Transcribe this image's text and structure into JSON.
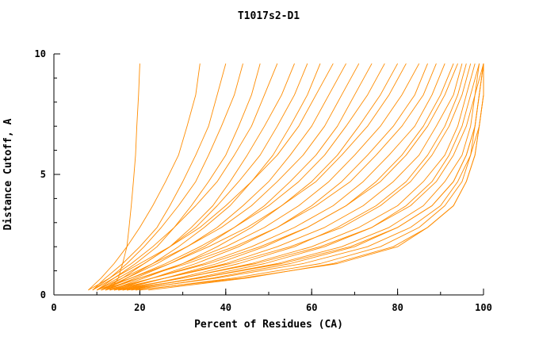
{
  "chart_data": {
    "type": "line",
    "title": "T1017s2-D1",
    "xlabel": "Percent of Residues (CA)",
    "ylabel": "Distance Cutoff, A",
    "xlim": [
      0,
      100
    ],
    "ylim": [
      0,
      10
    ],
    "xticks": [
      0,
      20,
      40,
      60,
      80,
      100
    ],
    "yticks": [
      0,
      5,
      10
    ],
    "x_minor_step": 10,
    "y_minor_step": 1,
    "grid": "off",
    "legend": "none",
    "line_color": "#ff8c00",
    "axis_color": "#000000",
    "cutoffs": [
      0.2,
      0.7,
      1.3,
      2.0,
      2.8,
      3.7,
      4.7,
      5.8,
      7.0,
      8.3,
      9.6
    ],
    "series": [
      [
        13,
        15,
        16,
        17,
        17.5,
        18,
        18.5,
        19,
        19.3,
        19.7,
        20
      ],
      [
        8,
        11,
        14,
        17,
        20,
        23,
        26,
        29,
        31,
        33,
        34
      ],
      [
        9,
        12,
        16,
        20,
        24,
        27,
        30,
        33,
        36,
        38,
        40
      ],
      [
        8,
        13,
        17,
        21,
        25,
        29,
        33,
        36,
        39,
        42,
        44
      ],
      [
        10,
        14,
        19,
        24,
        28,
        32,
        36,
        40,
        43,
        46,
        48
      ],
      [
        9,
        13,
        18,
        23,
        28,
        33,
        38,
        42,
        46,
        49,
        52
      ],
      [
        11,
        16,
        21,
        27,
        32,
        37,
        41,
        45,
        49,
        53,
        56
      ],
      [
        10,
        15,
        21,
        27,
        33,
        38,
        43,
        48,
        52,
        56,
        59
      ],
      [
        12,
        17,
        23,
        29,
        35,
        41,
        46,
        51,
        55,
        59,
        62
      ],
      [
        9,
        14,
        20,
        27,
        34,
        40,
        46,
        52,
        57,
        61,
        65
      ],
      [
        11,
        17,
        24,
        31,
        38,
        44,
        50,
        55,
        60,
        64,
        68
      ],
      [
        10,
        16,
        23,
        31,
        39,
        46,
        52,
        58,
        63,
        67,
        71
      ],
      [
        12,
        19,
        27,
        35,
        42,
        49,
        55,
        61,
        66,
        70,
        74
      ],
      [
        11,
        18,
        26,
        34,
        42,
        50,
        57,
        63,
        68,
        73,
        77
      ],
      [
        13,
        21,
        30,
        38,
        46,
        53,
        60,
        66,
        71,
        76,
        80
      ],
      [
        10,
        18,
        27,
        36,
        45,
        53,
        61,
        67,
        73,
        78,
        82
      ],
      [
        12,
        20,
        30,
        40,
        49,
        57,
        64,
        70,
        76,
        81,
        85
      ],
      [
        14,
        23,
        33,
        43,
        52,
        60,
        67,
        73,
        79,
        84,
        87
      ],
      [
        11,
        20,
        31,
        42,
        52,
        61,
        69,
        75,
        81,
        86,
        89
      ],
      [
        13,
        23,
        35,
        46,
        56,
        65,
        72,
        78,
        84,
        88,
        91
      ],
      [
        15,
        26,
        38,
        49,
        59,
        68,
        75,
        81,
        86,
        90,
        93
      ],
      [
        12,
        23,
        36,
        48,
        59,
        68,
        76,
        82,
        87,
        91,
        94
      ],
      [
        14,
        26,
        40,
        52,
        63,
        72,
        79,
        85,
        89,
        93,
        95
      ],
      [
        16,
        29,
        43,
        56,
        66,
        75,
        82,
        87,
        91,
        94,
        96
      ],
      [
        13,
        26,
        41,
        55,
        67,
        76,
        83,
        88,
        92,
        95,
        97
      ],
      [
        15,
        30,
        46,
        60,
        71,
        80,
        86,
        91,
        94,
        96,
        98
      ],
      [
        17,
        33,
        49,
        63,
        74,
        82,
        88,
        92,
        95,
        97,
        99
      ],
      [
        14,
        30,
        47,
        62,
        74,
        83,
        89,
        93,
        96,
        98,
        99
      ],
      [
        16,
        34,
        52,
        67,
        78,
        86,
        91,
        95,
        97,
        98,
        100
      ],
      [
        18,
        37,
        55,
        70,
        80,
        88,
        93,
        96,
        98,
        99,
        100
      ],
      [
        15,
        34,
        53,
        69,
        80,
        88,
        93,
        96,
        98,
        99,
        100
      ],
      [
        17,
        38,
        58,
        73,
        83,
        90,
        94,
        97,
        98,
        99,
        100
      ],
      [
        20,
        42,
        62,
        76,
        85,
        91,
        95,
        97,
        99,
        100,
        100
      ],
      [
        22,
        45,
        65,
        79,
        87,
        93,
        96,
        98,
        99,
        100,
        100
      ],
      [
        19,
        44,
        66,
        80,
        87,
        93,
        96,
        98,
        99,
        100,
        100
      ]
    ]
  },
  "layout_note": ""
}
